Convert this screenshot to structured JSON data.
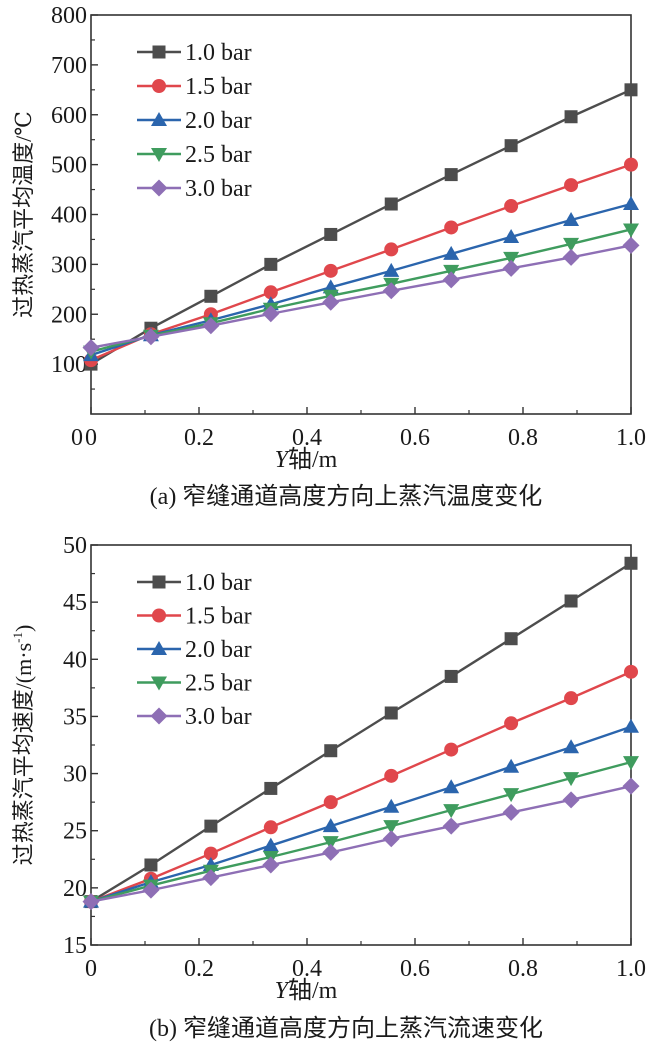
{
  "chart_data": [
    {
      "type": "line",
      "panel": "a",
      "caption": "(a) 窄缝通道高度方向上蒸汽温度变化",
      "xlabel_italic": "Y",
      "xlabel_rest": "轴/m",
      "ylabel": "过热蒸汽平均温度/℃",
      "xlim": [
        0,
        1.0
      ],
      "ylim": [
        0,
        800
      ],
      "xticks": [
        0,
        0.2,
        0.4,
        0.6,
        0.8,
        1.0
      ],
      "xtick_labels": [
        "0",
        "0.2",
        "0.4",
        "0.6",
        "0.8",
        "1.0"
      ],
      "yticks": [
        100,
        200,
        300,
        400,
        500,
        600,
        700,
        800
      ],
      "ytick_labels": [
        "100",
        "200",
        "300",
        "400",
        "500",
        "600",
        "700",
        "800"
      ],
      "legend_position": "top-left",
      "x": [
        0,
        0.111,
        0.222,
        0.333,
        0.444,
        0.556,
        0.667,
        0.778,
        0.889,
        1.0
      ],
      "series": [
        {
          "name": "1.0 bar",
          "marker": "square",
          "color": "#4d4d4d",
          "values": [
            100,
            172,
            236,
            300,
            360,
            421,
            480,
            538,
            596,
            650
          ]
        },
        {
          "name": "1.5 bar",
          "marker": "circle",
          "color": "#e0474c",
          "values": [
            108,
            160,
            200,
            244,
            287,
            330,
            374,
            417,
            459,
            500
          ]
        },
        {
          "name": "2.0 bar",
          "marker": "triangle-up",
          "color": "#2b65ad",
          "values": [
            118,
            158,
            188,
            220,
            254,
            287,
            321,
            355,
            389,
            421
          ]
        },
        {
          "name": "2.5 bar",
          "marker": "triangle-down",
          "color": "#3f9c5e",
          "values": [
            125,
            157,
            182,
            211,
            237,
            261,
            287,
            313,
            341,
            370
          ]
        },
        {
          "name": "3.0 bar",
          "marker": "diamond",
          "color": "#8e6fb5",
          "values": [
            133,
            155,
            177,
            201,
            224,
            247,
            269,
            292,
            314,
            338
          ]
        }
      ]
    },
    {
      "type": "line",
      "panel": "b",
      "caption": "(b) 窄缝通道高度方向上蒸汽流速变化",
      "xlabel_italic": "Y",
      "xlabel_rest": "轴/m",
      "ylabel": "过热蒸汽平均速度/(m·s",
      "ylabel_sup": "-1",
      "ylabel_end": ")",
      "xlim": [
        0,
        1.0
      ],
      "ylim": [
        15,
        50
      ],
      "xticks": [
        0,
        0.2,
        0.4,
        0.6,
        0.8,
        1.0
      ],
      "xtick_labels": [
        "0",
        "0.2",
        "0.4",
        "0.6",
        "0.8",
        "1.0"
      ],
      "yticks": [
        15,
        20,
        25,
        30,
        35,
        40,
        45,
        50
      ],
      "ytick_labels": [
        "15",
        "20",
        "25",
        "30",
        "35",
        "40",
        "45",
        "50"
      ],
      "legend_position": "top-left",
      "x": [
        0,
        0.111,
        0.222,
        0.333,
        0.444,
        0.556,
        0.667,
        0.778,
        0.889,
        1.0
      ],
      "series": [
        {
          "name": "1.0 bar",
          "marker": "square",
          "color": "#4d4d4d",
          "values": [
            18.8,
            22.0,
            25.4,
            28.7,
            32.0,
            35.3,
            38.5,
            41.8,
            45.1,
            48.4
          ]
        },
        {
          "name": "1.5 bar",
          "marker": "circle",
          "color": "#e0474c",
          "values": [
            18.8,
            20.8,
            23.0,
            25.3,
            27.5,
            29.8,
            32.1,
            34.4,
            36.6,
            38.9
          ]
        },
        {
          "name": "2.0 bar",
          "marker": "triangle-up",
          "color": "#2b65ad",
          "values": [
            18.8,
            20.5,
            22.0,
            23.7,
            25.4,
            27.1,
            28.8,
            30.6,
            32.3,
            34.1
          ]
        },
        {
          "name": "2.5 bar",
          "marker": "triangle-down",
          "color": "#3f9c5e",
          "values": [
            18.8,
            20.2,
            21.5,
            22.7,
            24.0,
            25.4,
            26.8,
            28.2,
            29.6,
            31.0
          ]
        },
        {
          "name": "3.0 bar",
          "marker": "diamond",
          "color": "#8e6fb5",
          "values": [
            18.8,
            19.8,
            20.9,
            22.0,
            23.1,
            24.3,
            25.4,
            26.6,
            27.7,
            28.9
          ]
        }
      ]
    }
  ]
}
